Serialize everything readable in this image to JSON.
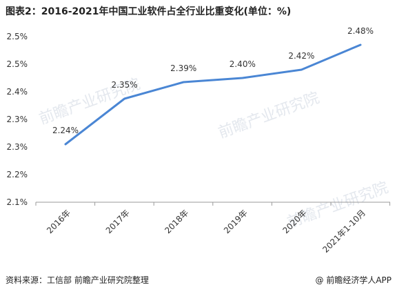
{
  "chart_data": {
    "type": "line",
    "title": "图表2：2016-2021年中国工业软件占全行业比重变化(单位：%)",
    "categories": [
      "2016年",
      "2017年",
      "2018年",
      "2019年",
      "2020年",
      "2021年1-10月"
    ],
    "values": [
      2.24,
      2.35,
      2.39,
      2.4,
      2.42,
      2.48
    ],
    "data_labels": [
      "2.24%",
      "2.35%",
      "2.39%",
      "2.40%",
      "2.42%",
      "2.48%"
    ],
    "y_tick_labels": [
      "2.1%",
      "2.2%",
      "2.3%",
      "2.3%",
      "2.4%",
      "2.5%",
      "2.5%"
    ],
    "ylim": [
      2.1,
      2.5
    ],
    "line_color": "#4a86d4",
    "grid": false,
    "legend": "none"
  },
  "footer": {
    "source": "资料来源：工信部 前瞻产业研究院整理",
    "brand_icon": "@",
    "brand": "前瞻经济学人APP"
  },
  "watermark": {
    "text": "前瞻产业研究院"
  }
}
